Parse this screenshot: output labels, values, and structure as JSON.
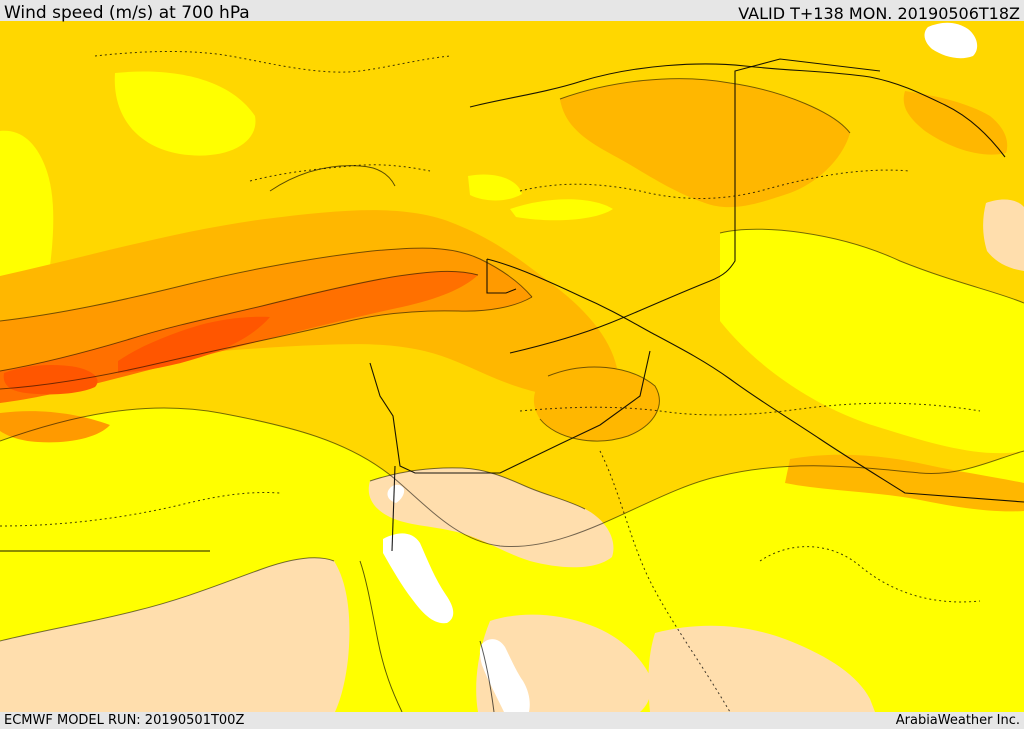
{
  "map": {
    "title": "Wind speed (m/s) at 700 hPa",
    "valid_text": "VALID T+138 MON. 20190506T18Z",
    "model_run_text": "ECMWF MODEL RUN: 20190501T00Z",
    "credit_text": "ArabiaWeather Inc.",
    "palette": {
      "cream": "#ffdead",
      "yellow": "#ffff00",
      "gold": "#ffd700",
      "amber": "#ffb700",
      "orange": "#ff9a00",
      "dark_orange": "#ff7000",
      "red_orange": "#ff5600",
      "water": "#ffffff",
      "line": "#000000"
    }
  }
}
